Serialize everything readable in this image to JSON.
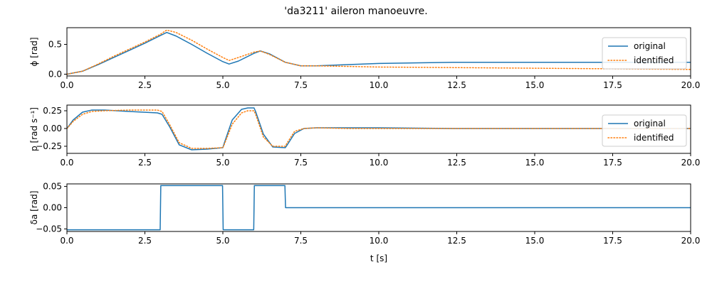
{
  "figure": {
    "title": "'da3211' aileron manoeuvre."
  },
  "chart_data": [
    {
      "type": "line",
      "ylabel": "ϕ [rad]",
      "xlim": [
        0,
        20
      ],
      "ylim": [
        -0.03,
        0.78
      ],
      "xticks": [
        0.0,
        2.5,
        5.0,
        7.5,
        10.0,
        12.5,
        15.0,
        17.5,
        20.0
      ],
      "xtick_labels": [
        "0.0",
        "2.5",
        "5.0",
        "7.5",
        "10.0",
        "12.5",
        "15.0",
        "17.5",
        "20.0"
      ],
      "yticks": [
        0.0,
        0.5
      ],
      "ytick_labels": [
        "0.0",
        "0.5"
      ],
      "legend": "right",
      "series": [
        {
          "name": "original",
          "color": "#1f77b4",
          "style": "solid",
          "x": [
            0,
            0.5,
            1,
            1.5,
            2,
            2.5,
            3,
            3.2,
            3.5,
            4,
            4.5,
            5,
            5.2,
            5.5,
            6,
            6.2,
            6.5,
            7,
            7.5,
            8,
            9,
            10,
            12.5,
            15,
            17.5,
            20
          ],
          "y": [
            0,
            0.05,
            0.16,
            0.28,
            0.4,
            0.52,
            0.65,
            0.7,
            0.64,
            0.5,
            0.35,
            0.21,
            0.17,
            0.22,
            0.35,
            0.39,
            0.34,
            0.2,
            0.14,
            0.14,
            0.16,
            0.18,
            0.2,
            0.2,
            0.2,
            0.2
          ]
        },
        {
          "name": "identified",
          "color": "#ff7f0e",
          "style": "dotted",
          "x": [
            0,
            0.5,
            1,
            1.5,
            2,
            2.5,
            3,
            3.2,
            3.5,
            4,
            4.5,
            5,
            5.2,
            5.5,
            6,
            6.2,
            6.5,
            7,
            7.5,
            8,
            9,
            10,
            12.5,
            15,
            17.5,
            20
          ],
          "y": [
            0,
            0.05,
            0.17,
            0.3,
            0.42,
            0.54,
            0.67,
            0.74,
            0.7,
            0.57,
            0.42,
            0.28,
            0.23,
            0.28,
            0.37,
            0.39,
            0.33,
            0.2,
            0.14,
            0.14,
            0.13,
            0.12,
            0.11,
            0.1,
            0.09,
            0.08
          ]
        }
      ]
    },
    {
      "type": "line",
      "ylabel": "p [rad s⁻¹]",
      "xlim": [
        0,
        20
      ],
      "ylim": [
        -0.35,
        0.33
      ],
      "xticks": [
        0.0,
        2.5,
        5.0,
        7.5,
        10.0,
        12.5,
        15.0,
        17.5,
        20.0
      ],
      "xtick_labels": [
        "0.0",
        "2.5",
        "5.0",
        "7.5",
        "10.0",
        "12.5",
        "15.0",
        "17.5",
        "20.0"
      ],
      "yticks": [
        -0.25,
        0.0,
        0.25
      ],
      "ytick_labels": [
        "−0.25",
        "0.00",
        "0.25"
      ],
      "legend": "right",
      "series": [
        {
          "name": "original",
          "color": "#1f77b4",
          "style": "solid",
          "x": [
            0,
            0.2,
            0.5,
            0.8,
            1.2,
            2,
            2.9,
            3.05,
            3.3,
            3.6,
            4,
            4.5,
            5,
            5.05,
            5.3,
            5.6,
            5.8,
            6,
            6.05,
            6.3,
            6.6,
            7,
            7.05,
            7.3,
            7.6,
            8,
            9,
            10,
            12.5,
            15,
            17.5,
            20
          ],
          "y": [
            0,
            0.12,
            0.23,
            0.26,
            0.26,
            0.24,
            0.22,
            0.2,
            0.02,
            -0.23,
            -0.3,
            -0.29,
            -0.27,
            -0.2,
            0.12,
            0.27,
            0.29,
            0.29,
            0.24,
            -0.08,
            -0.26,
            -0.27,
            -0.24,
            -0.07,
            0.0,
            0.01,
            0.01,
            0.01,
            0.0,
            0.0,
            0.0,
            0.0
          ]
        },
        {
          "name": "identified",
          "color": "#ff7f0e",
          "style": "dotted",
          "x": [
            0,
            0.2,
            0.5,
            0.8,
            1.2,
            2,
            2.9,
            3.05,
            3.3,
            3.6,
            4,
            4.5,
            5,
            5.05,
            5.3,
            5.6,
            5.8,
            6,
            6.05,
            6.3,
            6.6,
            7,
            7.05,
            7.3,
            7.6,
            8,
            9,
            10,
            12.5,
            15,
            17.5,
            20
          ],
          "y": [
            0,
            0.1,
            0.2,
            0.24,
            0.25,
            0.26,
            0.26,
            0.24,
            0.05,
            -0.2,
            -0.28,
            -0.28,
            -0.27,
            -0.22,
            0.06,
            0.22,
            0.25,
            0.25,
            0.2,
            -0.12,
            -0.25,
            -0.25,
            -0.21,
            -0.04,
            0.0,
            0.01,
            0.0,
            0.0,
            0.0,
            0.0,
            0.0,
            0.0
          ]
        }
      ]
    },
    {
      "type": "line",
      "ylabel": "δa [rad]",
      "xlabel": "t [s]",
      "xlim": [
        0,
        20
      ],
      "ylim": [
        -0.056,
        0.056
      ],
      "xticks": [
        0.0,
        2.5,
        5.0,
        7.5,
        10.0,
        12.5,
        15.0,
        17.5,
        20.0
      ],
      "xtick_labels": [
        "0.0",
        "2.5",
        "5.0",
        "7.5",
        "10.0",
        "12.5",
        "15.0",
        "17.5",
        "20.0"
      ],
      "yticks": [
        -0.05,
        0.0,
        0.05
      ],
      "ytick_labels": [
        "−0.05",
        "0.00",
        "0.05"
      ],
      "series": [
        {
          "name": "",
          "color": "#1f77b4",
          "style": "solid",
          "x": [
            0,
            2.99,
            3.01,
            4.99,
            5.01,
            5.99,
            6.01,
            6.99,
            7.01,
            20
          ],
          "y": [
            -0.052,
            -0.052,
            0.052,
            0.052,
            -0.052,
            -0.052,
            0.052,
            0.052,
            0,
            0
          ]
        }
      ]
    }
  ]
}
